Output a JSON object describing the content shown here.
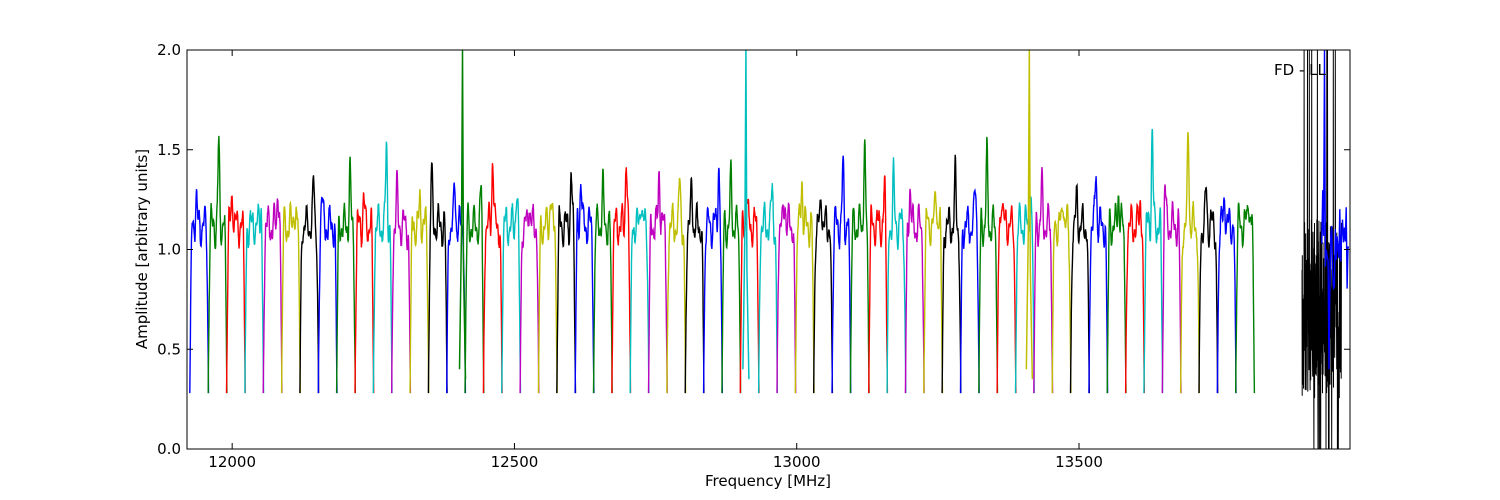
{
  "chart_data": {
    "type": "line",
    "title": "",
    "xlabel": "Frequency [MHz]",
    "ylabel": "Amplitude [arbitrary units]",
    "xlim": [
      11920,
      13980
    ],
    "ylim": [
      0.0,
      2.0
    ],
    "xticks": [
      12000,
      12500,
      13000,
      13500
    ],
    "yticks": [
      0.0,
      0.5,
      1.0,
      1.5,
      2.0
    ],
    "xtick_labels": [
      "12000",
      "12500",
      "13000",
      "13500"
    ],
    "ytick_labels": [
      "0.0",
      "0.5",
      "1.0",
      "1.5",
      "2.0"
    ],
    "annotation": "FD - LL",
    "grid": false,
    "colors": [
      "#0000ff",
      "#008000",
      "#ff0000",
      "#00bfbf",
      "#bf00bf",
      "#bfbf00",
      "#000000"
    ],
    "band": {
      "start": 11925,
      "width": 32.5,
      "count": 58,
      "min": 0.28,
      "base": 1.12
    },
    "peaks": [
      1.25,
      1.52,
      1.29,
      1.24,
      1.32,
      1.23,
      1.33,
      1.27,
      1.38,
      1.26,
      1.53,
      1.3,
      1.24,
      1.38,
      1.31,
      1.3,
      1.49,
      1.28,
      1.24,
      1.28,
      1.36,
      1.37,
      1.3,
      1.48,
      1.28,
      1.41,
      1.37,
      1.31,
      1.44,
      1.36,
      1.3,
      1.31,
      1.26,
      1.37,
      1.28,
      1.41,
      1.52,
      1.29,
      1.36,
      1.31,
      1.32,
      1.36,
      1.32,
      1.46,
      1.3,
      1.27,
      1.31,
      1.28,
      1.25,
      1.4,
      1.3,
      1.26,
      1.6,
      1.33,
      1.58,
      1.3,
      1.27,
      1.29
    ],
    "spikes": [
      {
        "x": 12408,
        "top": 2.0,
        "color": "#008000"
      },
      {
        "x": 12910,
        "top": 2.0,
        "color": "#00bfbf"
      },
      {
        "x": 13412,
        "top": 2.0,
        "color": "#bfbf00"
      }
    ],
    "noise_region": {
      "x_start": 13895,
      "x_end": 13965,
      "color": "#000000",
      "min": 0.0,
      "max": 2.0
    }
  }
}
